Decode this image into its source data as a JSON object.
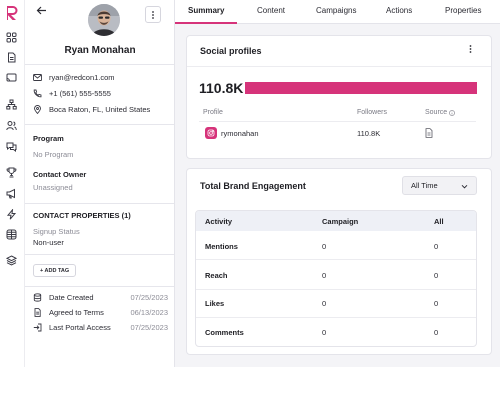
{
  "contact": {
    "name": "Ryan Monahan",
    "email": "ryan@redcon1.com",
    "phone": "+1 (561) 555-5555",
    "location": "Boca Raton, FL, United States"
  },
  "program": {
    "label": "Program",
    "value": "No Program"
  },
  "owner": {
    "label": "Contact Owner",
    "value": "Unassigned"
  },
  "properties": {
    "heading": "CONTACT PROPERTIES (1)",
    "signup_label": "Signup Status",
    "signup_value": "Non-user"
  },
  "add_tag_label": "+ ADD TAG",
  "meta": [
    {
      "label": "Date Created",
      "date": "07/25/2023",
      "icon": "database-icon"
    },
    {
      "label": "Agreed to Terms",
      "date": "06/13/2023",
      "icon": "document-icon"
    },
    {
      "label": "Last Portal Access",
      "date": "07/25/2023",
      "icon": "login-icon"
    }
  ],
  "tabs": [
    "Summary",
    "Content",
    "Campaigns",
    "Actions",
    "Properties"
  ],
  "social_profiles": {
    "title": "Social profiles",
    "total_followers": "110.8K",
    "columns": {
      "profile": "Profile",
      "followers": "Followers",
      "source": "Source"
    },
    "rows": [
      {
        "platform": "instagram",
        "handle": "rymonahan",
        "followers": "110.8K",
        "source_icon": "document-icon"
      }
    ],
    "bar_fraction": 1.0
  },
  "engagement": {
    "title": "Total Brand Engagement",
    "range": "All Time",
    "columns": [
      "Activity",
      "Campaign",
      "All"
    ],
    "rows": [
      {
        "activity": "Mentions",
        "campaign": "0",
        "all": "0"
      },
      {
        "activity": "Reach",
        "campaign": "0",
        "all": "0"
      },
      {
        "activity": "Likes",
        "campaign": "0",
        "all": "0"
      },
      {
        "activity": "Comments",
        "campaign": "0",
        "all": "0"
      }
    ]
  },
  "colors": {
    "accent": "#d6337a",
    "table_header": "#eef0f6",
    "muted": "#8c8c96"
  }
}
